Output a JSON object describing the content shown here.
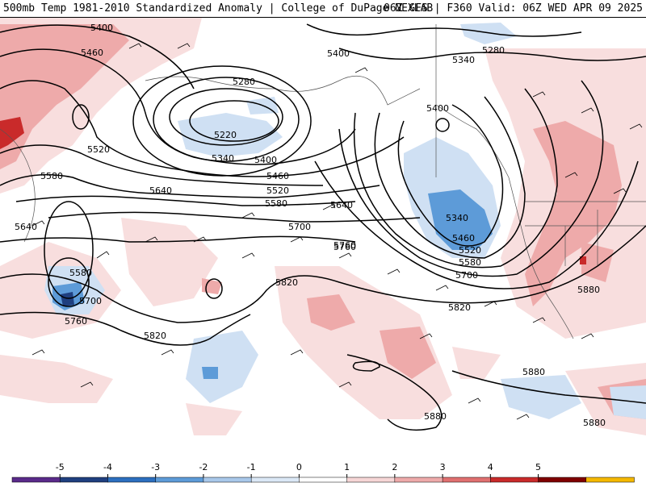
{
  "header": {
    "title": "500mb Temp 1981-2010 Standardized Anomaly | College of DuPage NEXLAB",
    "run_info": "06Z GFS | F360 Valid: 06Z WED APR 09 2025"
  },
  "contour_labels": {
    "h5400_a": "5400",
    "h5460_a": "5460",
    "h5520_a": "5520",
    "h5580_a": "5580",
    "h5640_a": "5640",
    "h5400_b": "5400",
    "h5280_a": "5280",
    "h5220": "5220",
    "h5340_a": "5340",
    "h5400_c": "5400",
    "h5460_b": "5460",
    "h5520_b": "5520",
    "h5580_b": "5580",
    "h5640_b": "5640",
    "h5700_a": "5700",
    "h5760_a": "5760",
    "h5580_c": "5580",
    "h5700_b": "5700",
    "h5760_b": "5760",
    "h5820_a": "5820",
    "h5820_b": "5820",
    "h5820_c": "5820",
    "h5400_d": "5400",
    "h5280_b": "5280",
    "h5340_b": "5340",
    "h5340_c": "5340",
    "h5460_c": "5460",
    "h5520_c": "5520",
    "h5580_d": "5580",
    "h5700_c": "5700",
    "h5640_c": "5640",
    "h5760_c": "5760",
    "h5880_a": "5880",
    "h5880_b": "5880",
    "h5880_c": "5880",
    "h5880_d": "5880"
  },
  "colorbar": {
    "ticks": [
      "-5",
      "-4",
      "-3",
      "-2",
      "-1",
      "0",
      "1",
      "2",
      "3",
      "4",
      "5"
    ],
    "colors": [
      "#5a2a8a",
      "#1f3f7f",
      "#2c6fbf",
      "#5d9bd8",
      "#a9c8ea",
      "#dbe8f6",
      "#ffffff",
      "#f6d6d6",
      "#eeaaaa",
      "#e07070",
      "#c92a2a",
      "#7f0000",
      "#f5b800"
    ]
  }
}
